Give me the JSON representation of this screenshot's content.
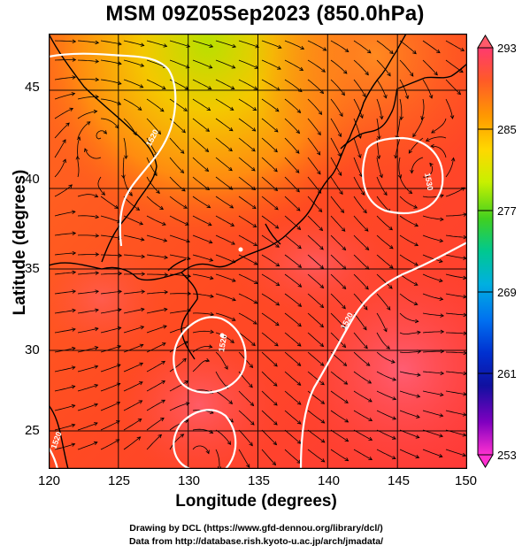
{
  "title": "MSM 09Z05Sep2023 (850.0hPa)",
  "x_axis": {
    "label": "Longitude (degrees)",
    "ticks": [
      "120",
      "125",
      "130",
      "135",
      "140",
      "145",
      "150"
    ]
  },
  "y_axis": {
    "label": "Latitude (degrees)",
    "ticks": [
      "25",
      "30",
      "35",
      "40",
      "45"
    ]
  },
  "colorbar": {
    "ticks": [
      "293",
      "285",
      "277",
      "269",
      "261",
      "253"
    ],
    "colors": [
      "#ff3a6e",
      "#ff5a28",
      "#ff9a00",
      "#ffd800",
      "#c8f000",
      "#40d020",
      "#00d8a0",
      "#00a0f0",
      "#0050e0",
      "#1010a0",
      "#8000c0",
      "#ff30d0"
    ]
  },
  "contours": [
    {
      "label": "1520"
    },
    {
      "label": "1530"
    },
    {
      "label": "1520"
    },
    {
      "label": "1520"
    },
    {
      "label": "1520"
    }
  ],
  "credits": {
    "line1": "Drawing by DCL (https://www.gfd-dennou.org/library/dcl/)",
    "line2": "Data from http://database.rish.kyoto-u.ac.jp/arch/jmadata/"
  }
}
